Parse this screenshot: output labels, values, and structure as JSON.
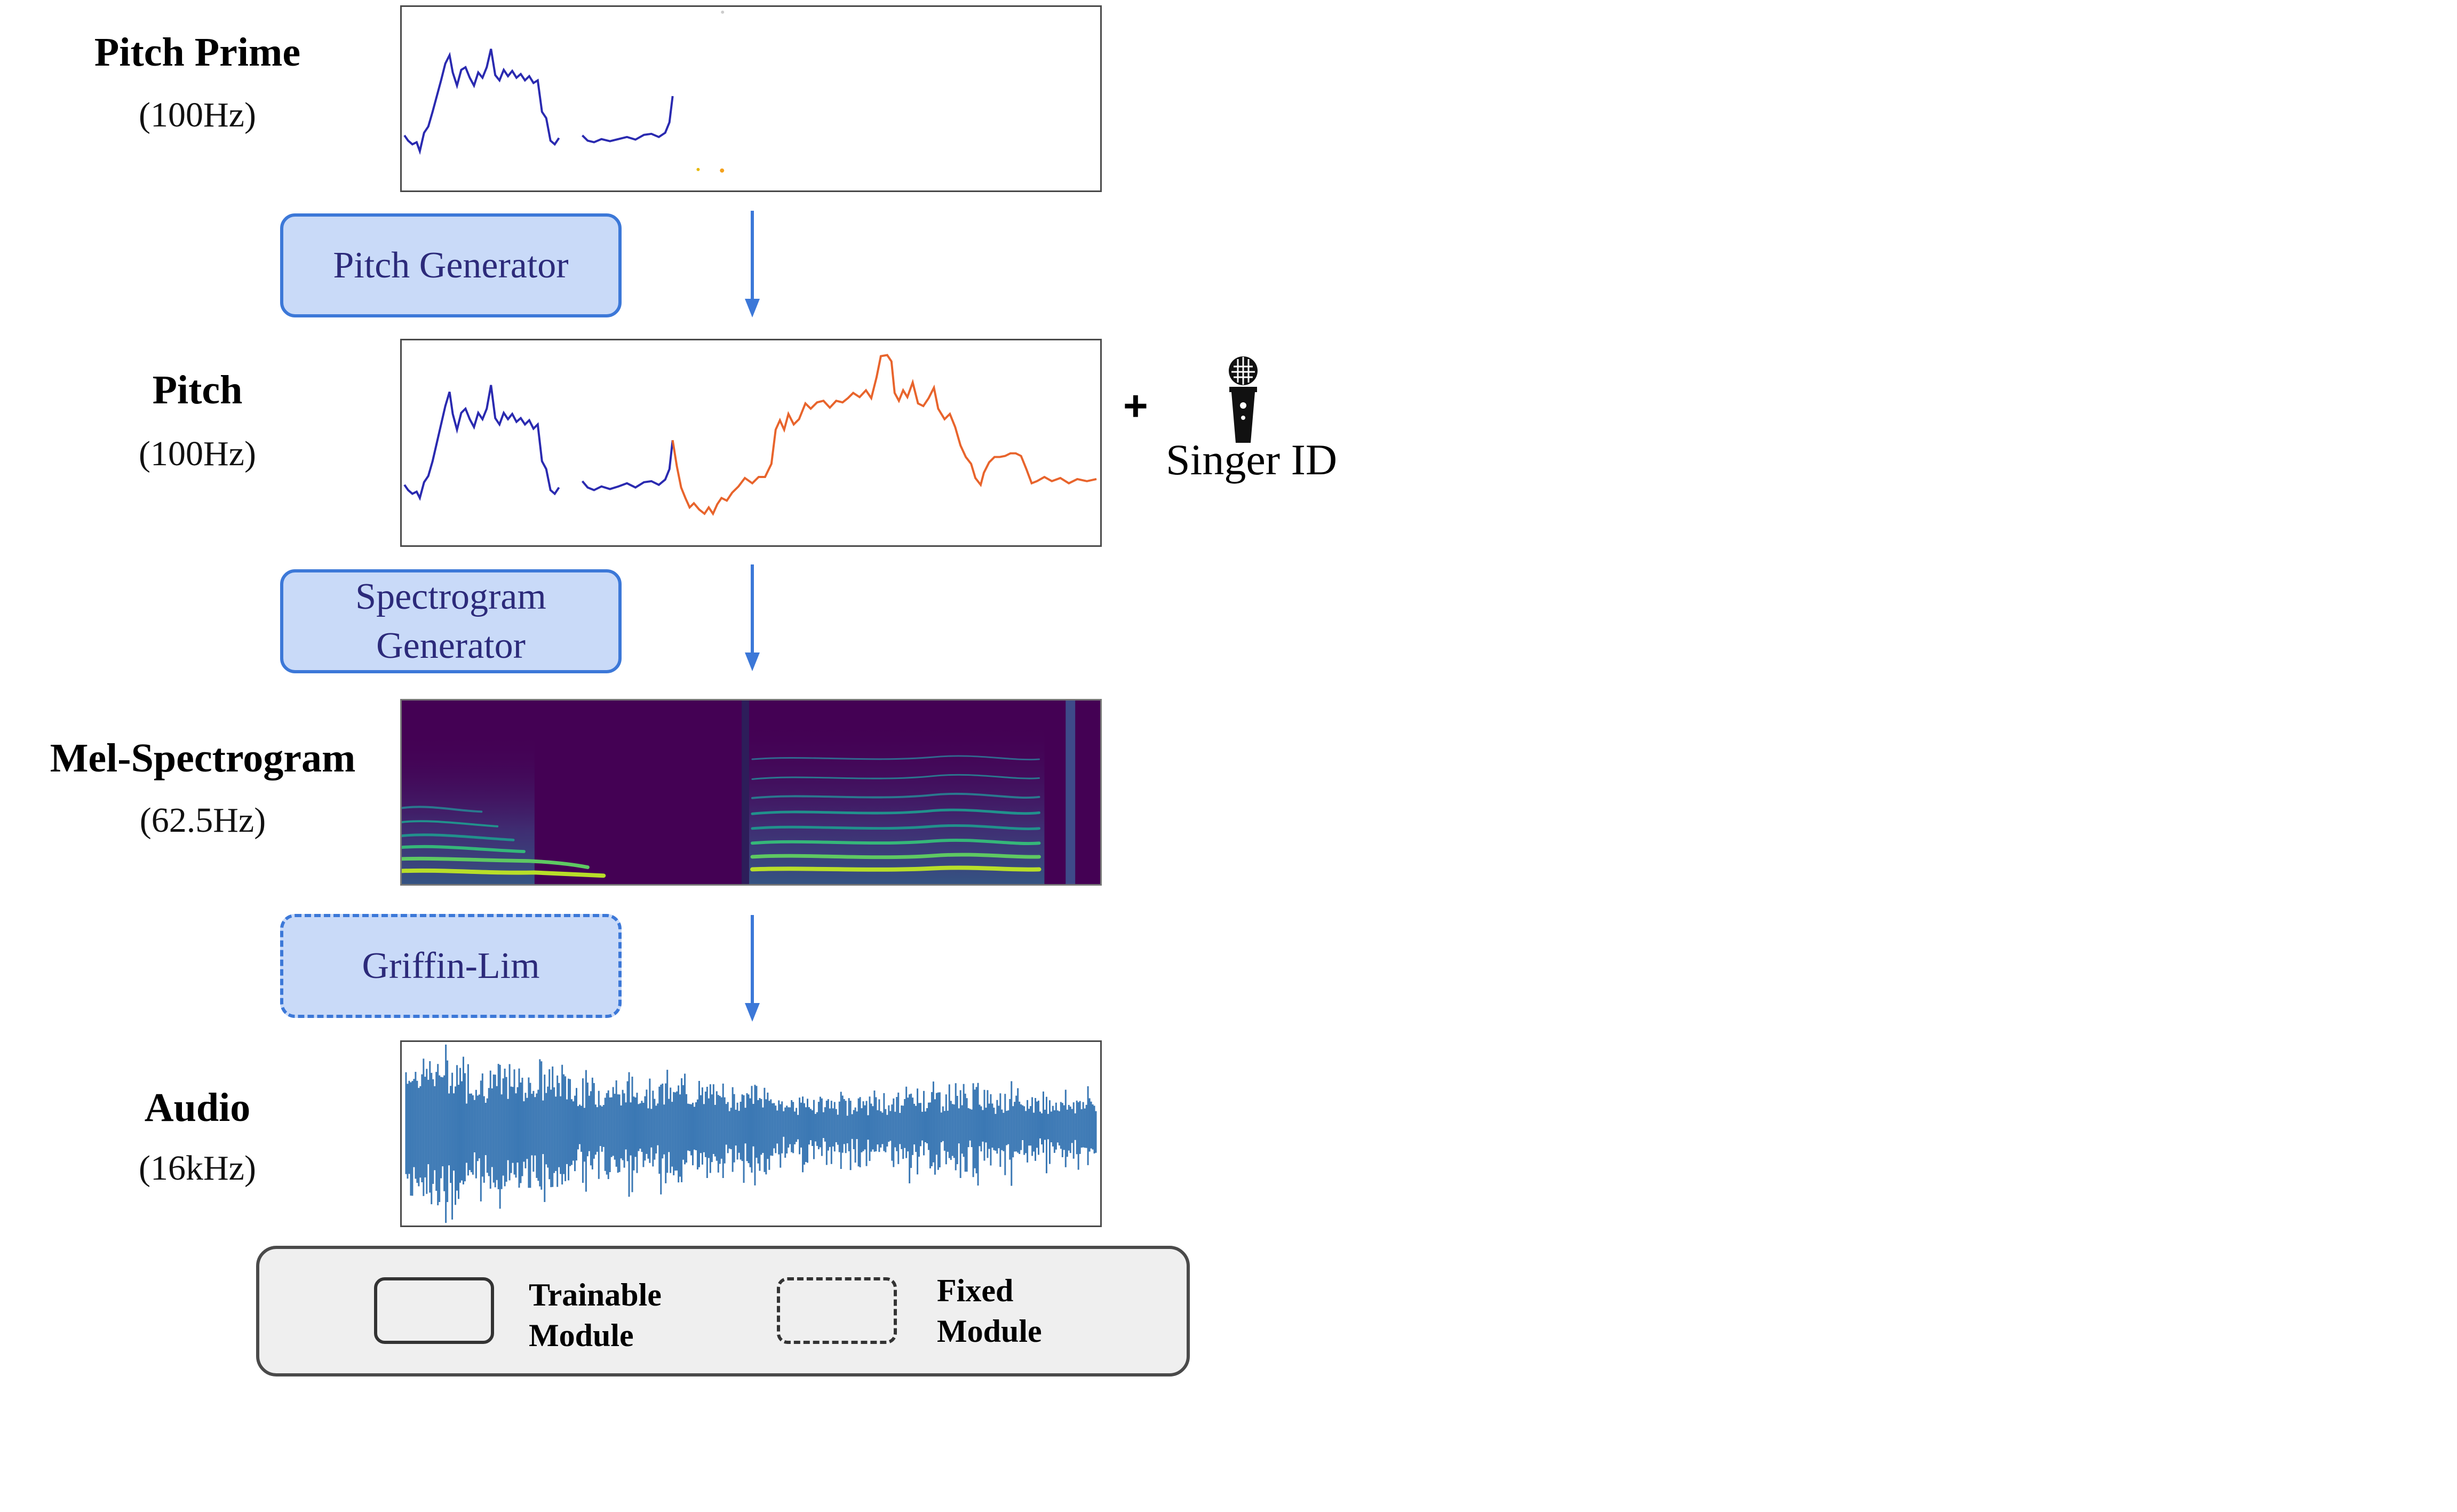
{
  "rows": [
    {
      "title": "Pitch Prime",
      "rate": "(100Hz)"
    },
    {
      "title": "Pitch",
      "rate": "(100Hz)"
    },
    {
      "title": "Mel-Spectrogram",
      "rate": "(62.5Hz)"
    },
    {
      "title": "Audio",
      "rate": "(16kHz)"
    }
  ],
  "modules": {
    "pitch_generator": "Pitch Generator",
    "spectrogram_generator_line1": "Spectrogram",
    "spectrogram_generator_line2": "Generator",
    "griffin_lim": "Griffin-Lim"
  },
  "singer": {
    "plus": "+",
    "label": "Singer ID",
    "icon": "microphone-icon"
  },
  "legend": {
    "trainable_line1": "Trainable",
    "trainable_line2": "Module",
    "fixed_line1": "Fixed",
    "fixed_line2": "Module"
  },
  "colors": {
    "module_fill": "#c9daf8",
    "module_border": "#3c78d8",
    "module_text": "#2c2a7a",
    "pitch_prime_curve": "#2a2ab0",
    "generated_pitch_curve": "#e8642c",
    "audio_wave": "#3b78b4",
    "spectrogram_bg": "#440154",
    "legend_bg": "#efefef"
  }
}
